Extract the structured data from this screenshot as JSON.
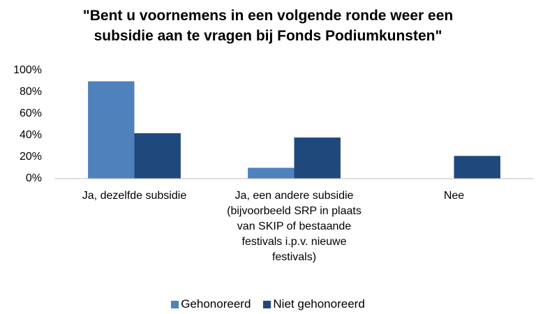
{
  "chart_data": {
    "type": "bar",
    "title": "\"Bent u voornemens in een volgende ronde weer een subsidie aan te vragen bij Fonds Podiumkunsten\"",
    "categories": [
      "Ja, dezelfde subsidie",
      "Ja, een andere subsidie (bijvoorbeeld SRP in plaats van SKIP of bestaande festivals i.p.v. nieuwe festivals)",
      "Nee"
    ],
    "series": [
      {
        "name": "Gehonoreerd",
        "color": "#4f81bd",
        "values": [
          90,
          10,
          0
        ]
      },
      {
        "name": "Niet gehonoreerd",
        "color": "#1f497d",
        "values": [
          42,
          38,
          21
        ]
      }
    ],
    "ylim": [
      0,
      100
    ],
    "yticks": [
      {
        "value": 0,
        "label": "0%"
      },
      {
        "value": 20,
        "label": "20%"
      },
      {
        "value": 40,
        "label": "40%"
      },
      {
        "value": 60,
        "label": "60%"
      },
      {
        "value": 80,
        "label": "80%"
      },
      {
        "value": 100,
        "label": "100%"
      }
    ],
    "grid": false,
    "legend": "bottom"
  }
}
